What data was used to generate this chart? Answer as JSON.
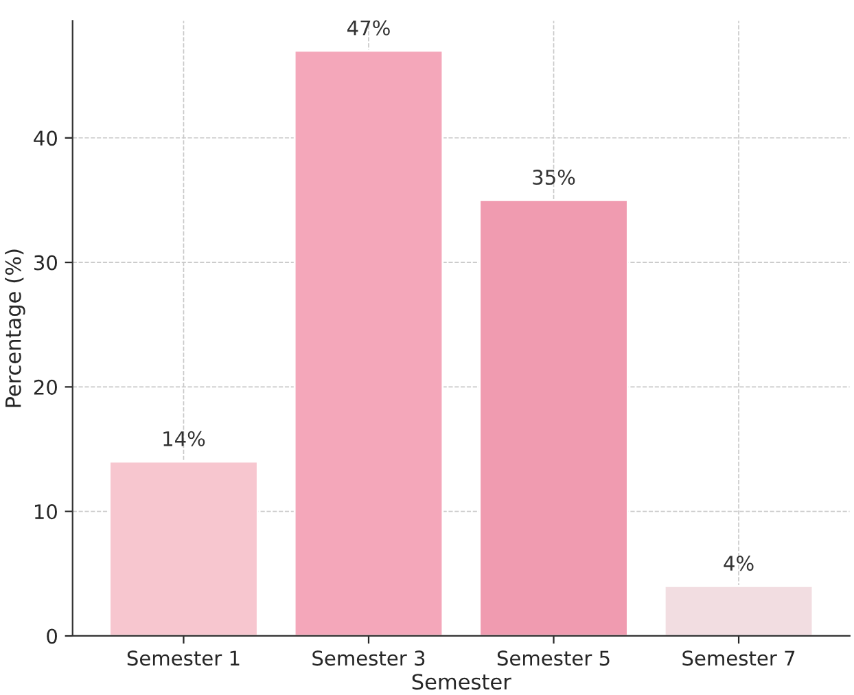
{
  "chart_data": {
    "type": "bar",
    "xlabel": "Semester",
    "ylabel": "Percentage (%)",
    "categories": [
      "Semester 1",
      "Semester 3",
      "Semester 5",
      "Semester 7"
    ],
    "values": [
      14,
      47,
      35,
      4
    ],
    "colors": [
      "#f7c6cf",
      "#f4a7ba",
      "#f09bb0",
      "#f2dde1"
    ],
    "value_labels": [
      "14%",
      "47%",
      "35%",
      "4%"
    ],
    "ylim": [
      0,
      49.4
    ],
    "yticks": [
      0,
      10,
      20,
      30,
      40
    ],
    "grid": true
  }
}
